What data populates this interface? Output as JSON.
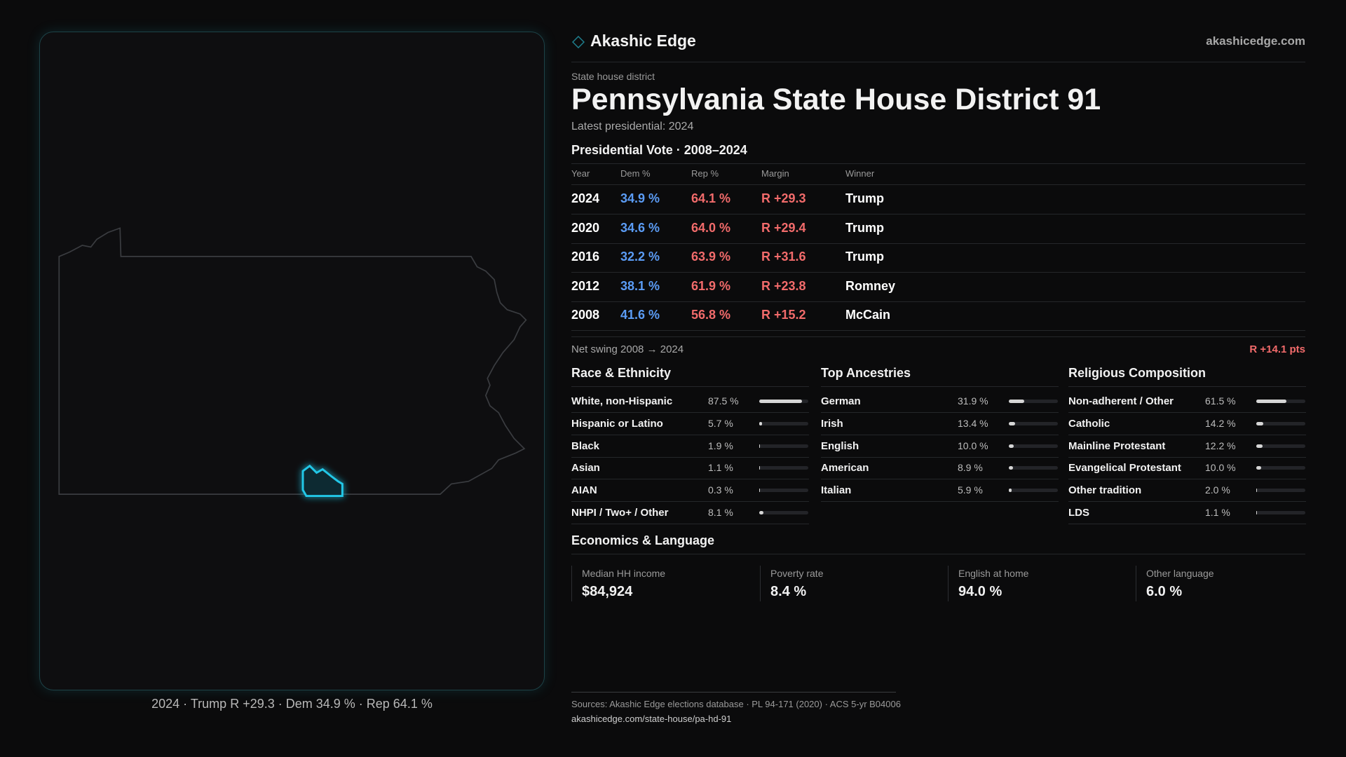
{
  "header": {
    "brand": "Akashic Edge",
    "site": "akashicedge.com"
  },
  "page": {
    "kicker": "State house district",
    "title": "Pennsylvania State House District 91",
    "subtitle": "Latest presidential: 2024"
  },
  "map": {
    "caption": "2024 · Trump R +29.3 · Dem 34.9 % · Rep 64.1 %"
  },
  "vote_table": {
    "title": "Presidential Vote · 2008–2024",
    "columns": [
      "Year",
      "Dem %",
      "Rep %",
      "Margin",
      "Winner"
    ],
    "rows": [
      [
        "2024",
        "34.9 %",
        "64.1 %",
        "R +29.3",
        "Trump"
      ],
      [
        "2020",
        "34.6 %",
        "64.0 %",
        "R +29.4",
        "Trump"
      ],
      [
        "2016",
        "32.2 %",
        "63.9 %",
        "R +31.6",
        "Trump"
      ],
      [
        "2012",
        "38.1 %",
        "61.9 %",
        "R +23.8",
        "Romney"
      ],
      [
        "2008",
        "41.6 %",
        "56.8 %",
        "R +15.2",
        "McCain"
      ]
    ]
  },
  "net_swing": {
    "label": "Net swing 2008 → 2024",
    "value": "R +14.1 pts"
  },
  "sections": [
    {
      "title": "Race & Ethnicity",
      "rows": [
        {
          "name": "White, non-Hispanic",
          "share": {
            "value": 87.5,
            "label": "87.5 %"
          }
        },
        {
          "name": "Hispanic or Latino",
          "share": {
            "value": 5.7,
            "label": "5.7 %"
          }
        },
        {
          "name": "Black",
          "share": {
            "value": 1.9,
            "label": "1.9 %"
          }
        },
        {
          "name": "Asian",
          "share": {
            "value": 1.1,
            "label": "1.1 %"
          }
        },
        {
          "name": "AIAN",
          "share": {
            "value": 0.3,
            "label": "0.3 %"
          }
        },
        {
          "name": "NHPI / Two+ / Other",
          "share": {
            "value": 8.1,
            "label": "8.1 %"
          }
        }
      ]
    },
    {
      "title": "Top Ancestries",
      "rows": [
        {
          "name": "German",
          "share": {
            "value": 31.9,
            "label": "31.9 %"
          }
        },
        {
          "name": "Irish",
          "share": {
            "value": 13.4,
            "label": "13.4 %"
          }
        },
        {
          "name": "English",
          "share": {
            "value": 10.0,
            "label": "10.0 %"
          }
        },
        {
          "name": "American",
          "share": {
            "value": 8.9,
            "label": "8.9 %"
          }
        },
        {
          "name": "Italian",
          "share": {
            "value": 5.9,
            "label": "5.9 %"
          }
        }
      ]
    },
    {
      "title": "Religious Composition",
      "rows": [
        {
          "name": "Non-adherent / Other",
          "share": {
            "value": 61.5,
            "label": "61.5 %"
          }
        },
        {
          "name": "Catholic",
          "share": {
            "value": 14.2,
            "label": "14.2 %"
          }
        },
        {
          "name": "Mainline Protestant",
          "share": {
            "value": 12.2,
            "label": "12.2 %"
          }
        },
        {
          "name": "Evangelical Protestant",
          "share": {
            "value": 10.0,
            "label": "10.0 %"
          }
        },
        {
          "name": "Other tradition",
          "share": {
            "value": 2.0,
            "label": "2.0 %"
          }
        },
        {
          "name": "LDS",
          "share": {
            "value": 1.1,
            "label": "1.1 %"
          }
        }
      ]
    }
  ],
  "economics": {
    "title": "Economics & Language",
    "cards": [
      {
        "label": "Median HH income",
        "value": "$84,924"
      },
      {
        "label": "Poverty rate",
        "value": "8.4 %"
      },
      {
        "label": "English at home",
        "value": "94.0 %"
      },
      {
        "label": "Other language",
        "value": "6.0 %"
      }
    ]
  },
  "footer": {
    "sources": "Sources: Akashic Edge elections database · PL 94-171 (2020) · ACS 5-yr B04006",
    "url": "akashicedge.com/state-house/pa-hd-91"
  }
}
